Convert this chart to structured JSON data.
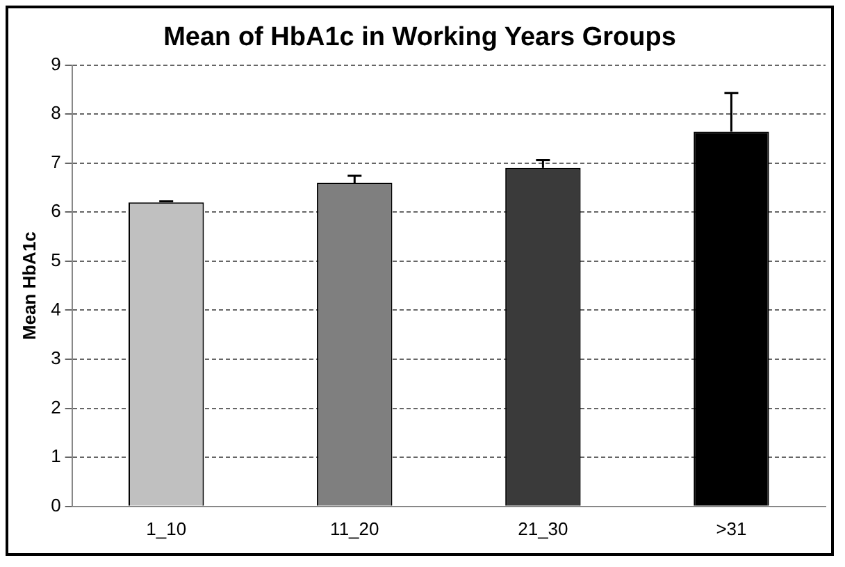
{
  "chart_data": {
    "type": "bar",
    "title": "Mean of HbA1c in Working Years Groups",
    "ylabel": "Mean HbA1c",
    "categories": [
      "1_10",
      "11_20",
      "21_30",
      ">31"
    ],
    "values": [
      6.2,
      6.6,
      6.9,
      7.64
    ],
    "colors": [
      "#c0c0c0",
      "#7f7f7f",
      "#3a3a3a",
      "#000000"
    ],
    "errors": [
      [
        6.2,
        6.22
      ],
      [
        6.6,
        6.74
      ],
      [
        6.9,
        7.06
      ],
      [
        7.64,
        8.43
      ]
    ],
    "ylim": [
      0,
      9
    ],
    "yticks": [
      0,
      1,
      2,
      3,
      4,
      5,
      6,
      7,
      8,
      9
    ],
    "grid": "y"
  }
}
